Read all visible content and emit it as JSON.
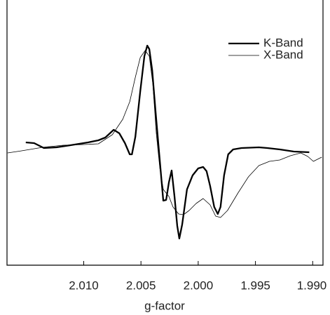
{
  "chart_data": {
    "type": "line",
    "x_label": "g-factor",
    "xlim": [
      2.0167,
      1.9891
    ],
    "xticks": [
      {
        "value": 2.01,
        "label": "2.010"
      },
      {
        "value": 2.005,
        "label": "2.005"
      },
      {
        "value": 2.0,
        "label": "2.000"
      },
      {
        "value": 1.995,
        "label": "1.995"
      },
      {
        "value": 1.99,
        "label": "1.990"
      }
    ],
    "ylim": [
      -1.6,
      2.18
    ],
    "legend": "upper right",
    "series": [
      {
        "name": "K-Band",
        "color": "#000000",
        "x": [
          2.01506,
          2.01433,
          2.01348,
          2.01238,
          2.01116,
          2.00963,
          2.00872,
          2.00811,
          2.00738,
          2.00689,
          2.0064,
          2.00598,
          2.00579,
          2.00549,
          2.00506,
          2.0047,
          2.00445,
          2.00427,
          2.00402,
          2.00372,
          2.00335,
          2.00305,
          2.0028,
          2.00256,
          2.00232,
          2.00207,
          2.00183,
          2.00165,
          2.0014,
          2.00098,
          2.00049,
          2.0,
          1.99957,
          1.99927,
          1.99896,
          1.9986,
          1.99829,
          1.99805,
          1.99774,
          1.99738,
          1.99695,
          1.99622,
          1.9947,
          1.99396,
          1.99287,
          1.99165,
          1.9903
        ],
        "values": [
          0.15,
          0.14,
          0.07,
          0.08,
          0.11,
          0.15,
          0.18,
          0.22,
          0.33,
          0.28,
          0.14,
          -0.02,
          -0.02,
          0.23,
          0.88,
          1.38,
          1.53,
          1.48,
          1.18,
          0.58,
          -0.12,
          -0.68,
          -0.67,
          -0.42,
          -0.25,
          -0.62,
          -1.04,
          -1.22,
          -1.02,
          -0.52,
          -0.32,
          -0.22,
          -0.2,
          -0.26,
          -0.47,
          -0.77,
          -0.87,
          -0.77,
          -0.32,
          -0.02,
          0.05,
          0.07,
          0.08,
          0.07,
          0.05,
          0.02,
          0.01
        ]
      },
      {
        "name": "X-Band",
        "color": "#000000",
        "x": [
          2.01665,
          2.01543,
          2.0136,
          2.01177,
          2.00994,
          2.00872,
          2.0075,
          2.00659,
          2.00598,
          2.00549,
          2.00506,
          2.00463,
          2.00427,
          2.00396,
          2.00366,
          2.00335,
          2.00305,
          2.00256,
          2.0022,
          2.00171,
          2.00128,
          2.00079,
          2.00018,
          1.99957,
          1.99896,
          1.99848,
          1.99805,
          1.99744,
          1.99652,
          1.99561,
          1.9947,
          1.99378,
          1.99287,
          1.99195,
          1.99104,
          1.99043,
          1.98994,
          1.98921
        ],
        "values": [
          0,
          0.03,
          0.08,
          0.11,
          0.12,
          0.13,
          0.26,
          0.48,
          0.73,
          1.08,
          1.36,
          1.46,
          1.38,
          0.98,
          0.28,
          -0.22,
          -0.52,
          -0.62,
          -0.77,
          -0.87,
          -0.88,
          -0.82,
          -0.72,
          -0.65,
          -0.74,
          -0.9,
          -0.92,
          -0.82,
          -0.57,
          -0.34,
          -0.18,
          -0.12,
          -0.1,
          -0.04,
          0,
          -0.05,
          -0.12,
          -0.06
        ]
      }
    ]
  }
}
